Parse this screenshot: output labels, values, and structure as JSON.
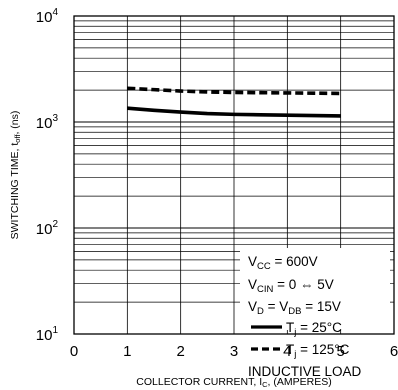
{
  "chart_data": {
    "type": "line",
    "xlabel": {
      "main": "COLLECTOR CURRENT, I",
      "sub": "C",
      "suffix": ", (AMPERES)"
    },
    "ylabel": {
      "main": "SWITCHING TIME, t",
      "sub": "off",
      "suffix": ", (ns)"
    },
    "xlim": [
      0,
      6
    ],
    "ylim": [
      10,
      10000
    ],
    "yscale": "log",
    "grid": true,
    "x_ticks": [
      "0",
      "1",
      "2",
      "3",
      "4",
      "5",
      "6"
    ],
    "y_ticks": [
      {
        "base": "10",
        "exp": "1"
      },
      {
        "base": "10",
        "exp": "2"
      },
      {
        "base": "10",
        "exp": "3"
      },
      {
        "base": "10",
        "exp": "4"
      }
    ],
    "series": [
      {
        "name": "Tj = 25°C",
        "style": "solid",
        "x": [
          1,
          1.5,
          2,
          2.5,
          3,
          3.5,
          4,
          4.5,
          5
        ],
        "y": [
          1350,
          1290,
          1240,
          1200,
          1180,
          1170,
          1160,
          1150,
          1140
        ]
      },
      {
        "name": "Tj = 125°C",
        "style": "dashed",
        "x": [
          1,
          1.5,
          2,
          2.5,
          3,
          3.5,
          4,
          4.5,
          5
        ],
        "y": [
          2080,
          2020,
          1960,
          1920,
          1900,
          1890,
          1880,
          1870,
          1860
        ]
      }
    ],
    "legend": {
      "placement": "bottom-right",
      "lines": [
        {
          "main": "V",
          "sub": "CC",
          "rest": " = 600V"
        },
        {
          "main": "V",
          "sub": "CIN",
          "rest": " = 0 ⇔ 5V"
        },
        {
          "main": "V",
          "sub": "D",
          "rest": " = V",
          "sub2": "DB",
          "rest2": " = 15V"
        }
      ],
      "entries": [
        {
          "label_main": "T",
          "label_sub": "j",
          "label_rest": " = 25°C",
          "style": "solid"
        },
        {
          "label_main": "T",
          "label_sub": "j",
          "label_rest": " = 125°C",
          "style": "dashed"
        }
      ],
      "footer": "INDUCTIVE LOAD"
    }
  }
}
